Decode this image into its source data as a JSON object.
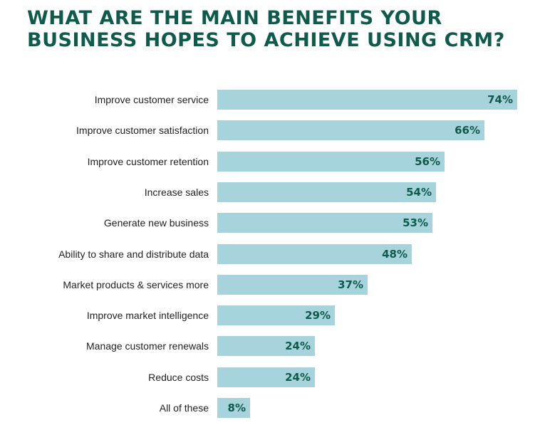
{
  "title_lines": [
    "WHAT ARE THE MAIN BENEFITS YOUR",
    "BUSINESS HOPES TO ACHIEVE USING CRM?"
  ],
  "colors": {
    "title": "#0f5b4b",
    "bar": "#a6d3dc",
    "value_text": "#0f5b4b",
    "label_text": "#222222"
  },
  "chart_data": {
    "type": "bar",
    "orientation": "horizontal",
    "title": "WHAT ARE THE MAIN BENEFITS YOUR BUSINESS HOPES TO ACHIEVE USING CRM?",
    "categories": [
      "Improve customer service",
      "Improve customer satisfaction",
      "Improve customer retention",
      "Increase sales",
      "Generate new business",
      "Ability to share and distribute data",
      "Market products & services more",
      "Improve market intelligence",
      "Manage customer renewals",
      "Reduce costs",
      "All of these"
    ],
    "values": [
      74,
      66,
      56,
      54,
      53,
      48,
      37,
      29,
      24,
      24,
      8
    ],
    "value_labels": [
      "74%",
      "66%",
      "56%",
      "54%",
      "53%",
      "48%",
      "37%",
      "29%",
      "24%",
      "24%",
      "8%"
    ],
    "unit": "%",
    "xlim": [
      0,
      74
    ],
    "grid": false,
    "legend": "none"
  }
}
